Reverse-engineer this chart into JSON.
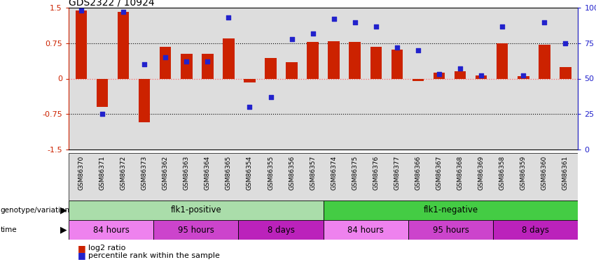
{
  "title": "GDS2322 / 10924",
  "samples": [
    "GSM86370",
    "GSM86371",
    "GSM86372",
    "GSM86373",
    "GSM86362",
    "GSM86363",
    "GSM86364",
    "GSM86365",
    "GSM86354",
    "GSM86355",
    "GSM86356",
    "GSM86357",
    "GSM86374",
    "GSM86375",
    "GSM86376",
    "GSM86377",
    "GSM86366",
    "GSM86367",
    "GSM86368",
    "GSM86369",
    "GSM86358",
    "GSM86359",
    "GSM86360",
    "GSM86361"
  ],
  "log2_ratio": [
    1.45,
    -0.6,
    1.42,
    -0.92,
    0.68,
    0.52,
    0.52,
    0.85,
    -0.08,
    0.43,
    0.35,
    0.78,
    0.8,
    0.78,
    0.68,
    0.62,
    -0.05,
    0.12,
    0.15,
    0.07,
    0.75,
    0.05,
    0.72,
    0.25
  ],
  "percentile": [
    98,
    25,
    97,
    60,
    65,
    62,
    62,
    93,
    30,
    37,
    78,
    82,
    92,
    90,
    87,
    72,
    70,
    53,
    57,
    52,
    87,
    52,
    90,
    75
  ],
  "genotype_groups": [
    {
      "label": "flk1-positive",
      "start": 0,
      "end": 11,
      "color": "#AADDAA"
    },
    {
      "label": "flk1-negative",
      "start": 12,
      "end": 23,
      "color": "#44CC44"
    }
  ],
  "time_groups": [
    {
      "label": "84 hours",
      "start": 0,
      "end": 3,
      "color": "#EE82EE"
    },
    {
      "label": "95 hours",
      "start": 4,
      "end": 7,
      "color": "#CC44CC"
    },
    {
      "label": "8 days",
      "start": 8,
      "end": 11,
      "color": "#BB22BB"
    },
    {
      "label": "84 hours",
      "start": 12,
      "end": 15,
      "color": "#EE82EE"
    },
    {
      "label": "95 hours",
      "start": 16,
      "end": 19,
      "color": "#CC44CC"
    },
    {
      "label": "8 days",
      "start": 20,
      "end": 23,
      "color": "#BB22BB"
    }
  ],
  "bar_color": "#CC2200",
  "dot_color": "#2222CC",
  "ylim": [
    -1.5,
    1.5
  ],
  "y2lim": [
    0,
    100
  ],
  "yticks": [
    -1.5,
    -0.75,
    0,
    0.75,
    1.5
  ],
  "y2ticks": [
    0,
    25,
    50,
    75,
    100
  ],
  "y2ticklabels": [
    "0",
    "25",
    "50",
    "75",
    "100%"
  ],
  "dotted_lines": [
    -0.75,
    0.75
  ],
  "zero_color": "#FF6666",
  "bg_color": "#DDDDDD",
  "label_log2": "log2 ratio",
  "label_pct": "percentile rank within the sample",
  "genotype_label": "genotype/variation",
  "time_label": "time"
}
